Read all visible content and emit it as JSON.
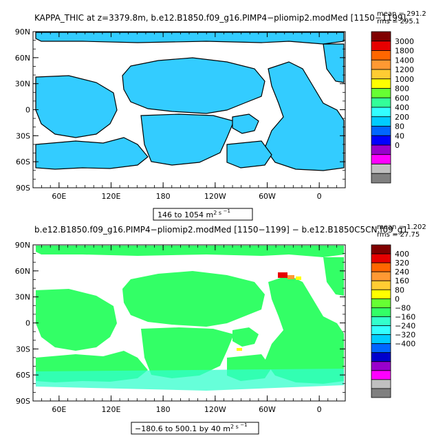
{
  "chart_data": [
    {
      "type": "heatmap",
      "title": "KAPPA_THIC at z=3379.8m, b.e12.B1850.f09_g16.PIMP4−pliomip2.modMed [1150−1199]",
      "stats": [
        "mean = 291.2",
        "rms = 295.1"
      ],
      "range_label_main": "146 to 1054 m",
      "range_label_unit": "2 s",
      "range_label_exp": "−1",
      "x_ticks": [
        "60E",
        "120E",
        "180",
        "120W",
        "60W",
        "0"
      ],
      "y_ticks": [
        "90N",
        "60N",
        "30N",
        "0",
        "30S",
        "60S",
        "90S"
      ],
      "legend_levels": [
        "3000",
        "1800",
        "1400",
        "1200",
        "1000",
        "800",
        "600",
        "400",
        "200",
        "80",
        "40",
        "0"
      ],
      "legend_colors": [
        "#800000",
        "#e60000",
        "#ff6600",
        "#ff9933",
        "#ffcc33",
        "#ffff00",
        "#66ff33",
        "#33ff99",
        "#33ffff",
        "#00ccff",
        "#0066ff",
        "#0000ff",
        "#9900cc",
        "#ff00ff",
        "#c0c0c0",
        "#808080"
      ],
      "field_color": "#33ccff",
      "ocean_edge_color": "#000000"
    },
    {
      "type": "heatmap",
      "title": "b.e12.B1850.f09_g16.PIMP4−pliomip2.modMed [1150−1199] − b.e12.B1850C5CN.f09_g1",
      "stats": [
        "mean = 1.202",
        "rms = 27.75"
      ],
      "range_label_main": "−180.6 to 500.1 by 40 m",
      "range_label_unit": "2 s",
      "range_label_exp": "−1",
      "x_ticks": [
        "60E",
        "120E",
        "180",
        "120W",
        "60W",
        "0"
      ],
      "y_ticks": [
        "90N",
        "60N",
        "30N",
        "0",
        "30S",
        "60S",
        "90S"
      ],
      "legend_levels": [
        "400",
        "320",
        "240",
        "160",
        "80",
        "0",
        "−80",
        "−160",
        "−240",
        "−320",
        "−400"
      ],
      "legend_colors": [
        "#800000",
        "#e60000",
        "#ff6600",
        "#ff9933",
        "#ffcc33",
        "#ffff00",
        "#66ff33",
        "#33ff66",
        "#33ffcc",
        "#33ffff",
        "#00ccff",
        "#0066ff",
        "#0000cc",
        "#9900cc",
        "#ff00ff",
        "#c0c0c0",
        "#808080"
      ],
      "field_color": "#33ff66"
    }
  ]
}
